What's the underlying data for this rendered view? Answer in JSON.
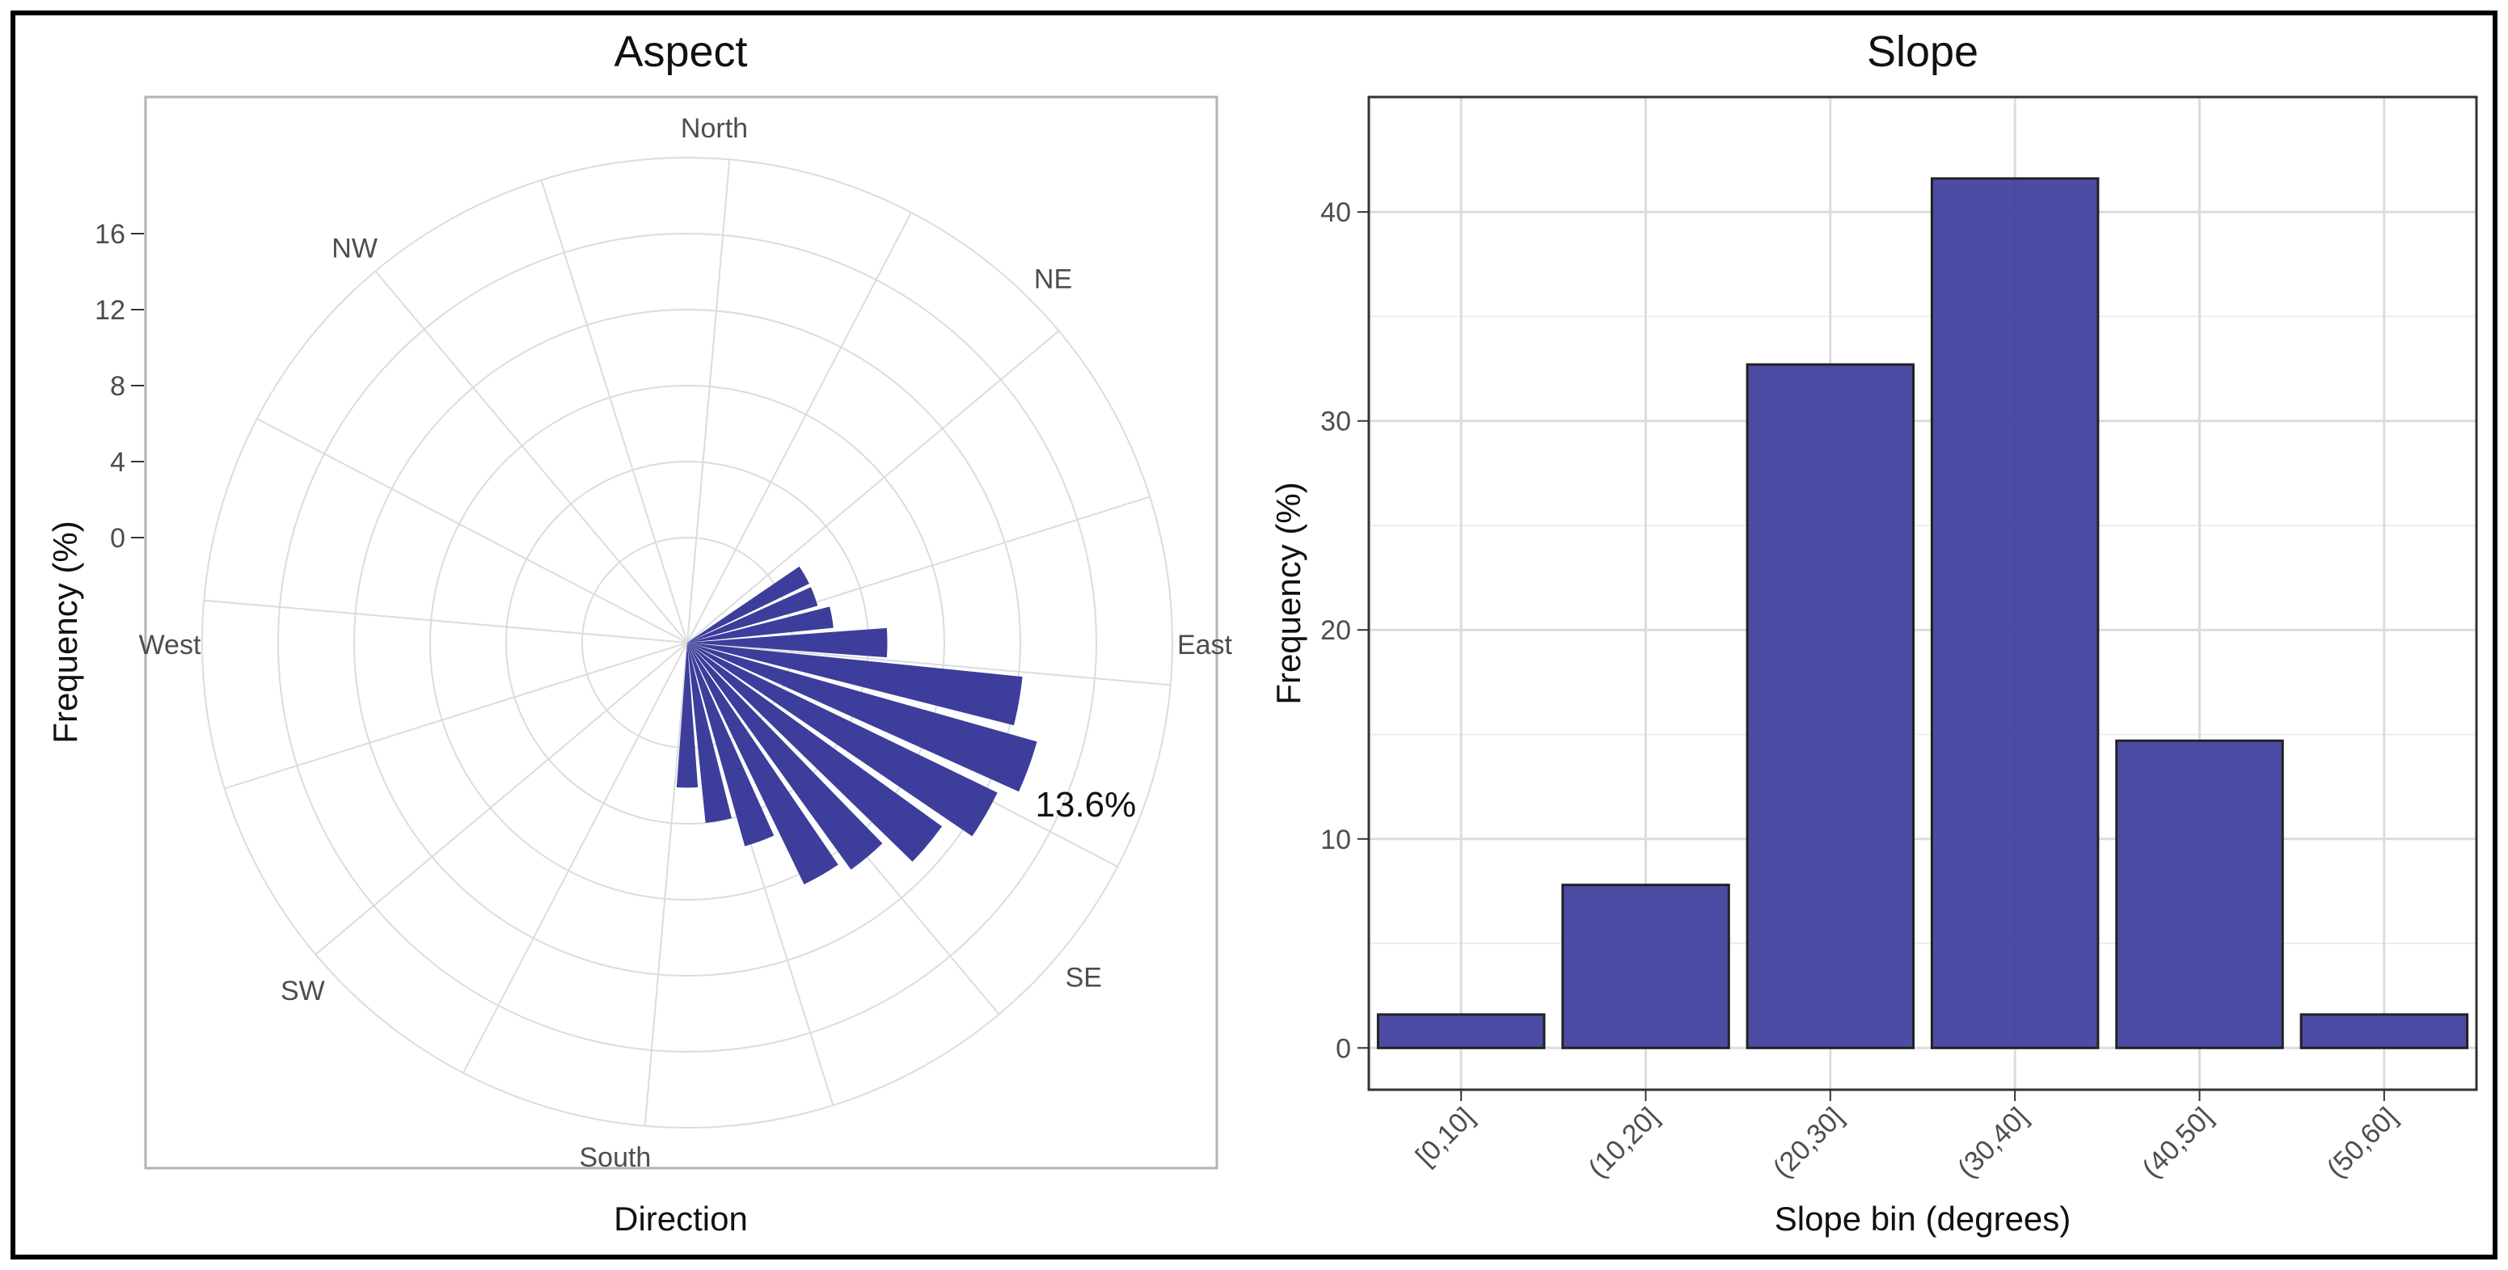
{
  "colors": {
    "bar_fill": "#3d3d9c",
    "bar_stroke": "#222222",
    "grid": "#dcdcdc",
    "panel_border": "#333333",
    "polar_border": "#b3b3b3",
    "text": "#222222",
    "tick_text": "#4d4d4d"
  },
  "chart_data": [
    {
      "type": "bar",
      "subtype": "polar-rose",
      "title": "Aspect",
      "xlabel": "Direction",
      "ylabel": "Frequency (%)",
      "ylim": [
        0,
        20
      ],
      "yticks": [
        0,
        4,
        8,
        12,
        16
      ],
      "yticklabels": [
        "0",
        "4",
        "8",
        "12",
        "16"
      ],
      "direction_labels": [
        "North",
        "NE",
        "East",
        "SE",
        "South",
        "SW",
        "West",
        "NW"
      ],
      "direction_label_angles": [
        -2,
        40,
        85,
        125,
        183,
        223,
        265,
        315
      ],
      "bin_width_deg": 10,
      "bars": [
        {
          "angle": 55,
          "value": 1.6
        },
        {
          "angle": 65,
          "value": 1.6
        },
        {
          "angle": 75,
          "value": 2.2
        },
        {
          "angle": 85,
          "value": 5.0
        },
        {
          "angle": 95,
          "value": 12.2
        },
        {
          "angle": 105,
          "value": 13.6
        },
        {
          "angle": 115,
          "value": 12.6
        },
        {
          "angle": 125,
          "value": 11.0
        },
        {
          "angle": 135,
          "value": 9.2
        },
        {
          "angle": 145,
          "value": 8.6
        },
        {
          "angle": 155,
          "value": 5.6
        },
        {
          "angle": 165,
          "value": 4.0
        },
        {
          "angle": 175,
          "value": 2.1
        }
      ],
      "annotation": {
        "text": "13.6%",
        "angle": 107
      }
    },
    {
      "type": "bar",
      "title": "Slope",
      "xlabel": "Slope bin (degrees)",
      "ylabel": "Frequency (%)",
      "categories": [
        "[0,10]",
        "(10,20]",
        "(20,30]",
        "(30,40]",
        "(40,50]",
        "(50,60]"
      ],
      "values": [
        1.6,
        7.8,
        32.7,
        41.6,
        14.7,
        1.6
      ],
      "ylim": [
        -2.0,
        45.5
      ],
      "yticks": [
        0,
        10,
        20,
        30,
        40
      ],
      "yticklabels": [
        "0",
        "10",
        "20",
        "30",
        "40"
      ]
    }
  ]
}
